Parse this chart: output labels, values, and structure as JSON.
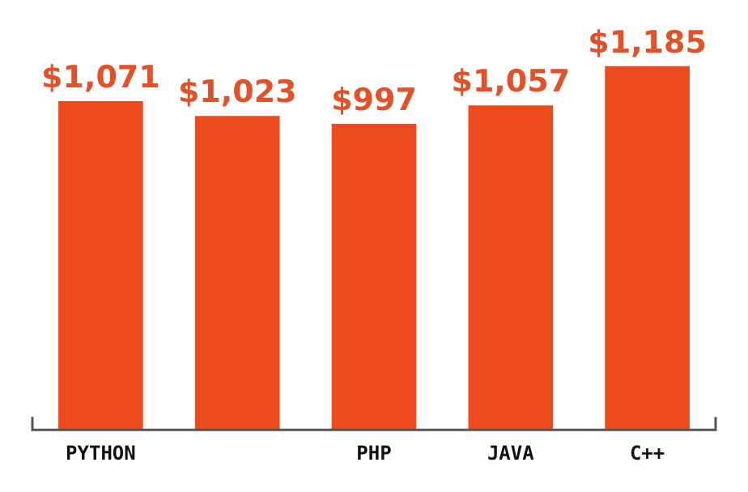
{
  "chart_data": {
    "type": "bar",
    "categories": [
      "PYTHON",
      null,
      "PHP",
      "JAVA",
      "C++"
    ],
    "values": [
      1071,
      1023,
      997,
      1057,
      1185
    ],
    "value_labels": [
      "$1,071",
      "$1,023",
      "$997",
      "$1,057",
      "$1,185"
    ],
    "color": "#ec4a1f",
    "grid": false,
    "legend": false
  }
}
